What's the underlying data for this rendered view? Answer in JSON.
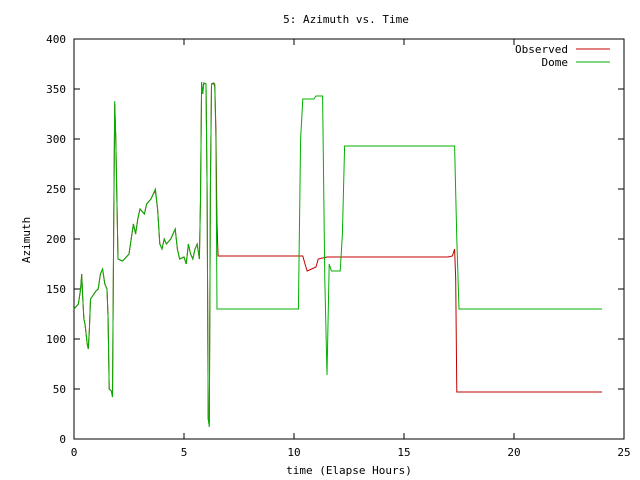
{
  "chart_data": {
    "type": "line",
    "title": "5: Azimuth vs. Time",
    "xlabel": "time (Elapse Hours)",
    "ylabel": "Azimuth",
    "xlim": [
      0,
      25
    ],
    "ylim": [
      0,
      400
    ],
    "xticks": [
      0,
      5,
      10,
      15,
      20,
      25
    ],
    "yticks": [
      0,
      50,
      100,
      150,
      200,
      250,
      300,
      350,
      400
    ],
    "grid": false,
    "legend_position": "top-right",
    "series": [
      {
        "name": "Observed",
        "color": "#c00000",
        "points": [
          [
            0.0,
            130
          ],
          [
            0.2,
            135
          ],
          [
            0.3,
            150
          ],
          [
            0.35,
            165
          ],
          [
            0.4,
            140
          ],
          [
            0.45,
            120
          ],
          [
            0.5,
            115
          ],
          [
            0.6,
            95
          ],
          [
            0.65,
            90
          ],
          [
            0.7,
            110
          ],
          [
            0.75,
            140
          ],
          [
            1.0,
            148
          ],
          [
            1.1,
            150
          ],
          [
            1.2,
            165
          ],
          [
            1.3,
            170
          ],
          [
            1.4,
            155
          ],
          [
            1.5,
            150
          ],
          [
            1.55,
            120
          ],
          [
            1.6,
            50
          ],
          [
            1.7,
            48
          ],
          [
            1.75,
            42
          ],
          [
            1.8,
            200
          ],
          [
            1.85,
            335
          ],
          [
            1.9,
            300
          ],
          [
            2.0,
            180
          ],
          [
            2.2,
            178
          ],
          [
            2.3,
            180
          ],
          [
            2.5,
            185
          ],
          [
            2.6,
            200
          ],
          [
            2.7,
            215
          ],
          [
            2.8,
            205
          ],
          [
            2.9,
            220
          ],
          [
            3.0,
            230
          ],
          [
            3.2,
            225
          ],
          [
            3.3,
            235
          ],
          [
            3.5,
            240
          ],
          [
            3.6,
            245
          ],
          [
            3.7,
            248
          ],
          [
            3.8,
            230
          ],
          [
            3.9,
            195
          ],
          [
            4.0,
            190
          ],
          [
            4.1,
            200
          ],
          [
            4.2,
            195
          ],
          [
            4.4,
            200
          ],
          [
            4.5,
            205
          ],
          [
            4.6,
            210
          ],
          [
            4.7,
            190
          ],
          [
            4.8,
            180
          ],
          [
            5.0,
            182
          ],
          [
            5.1,
            175
          ],
          [
            5.2,
            195
          ],
          [
            5.3,
            185
          ],
          [
            5.4,
            180
          ],
          [
            5.5,
            190
          ],
          [
            5.6,
            195
          ],
          [
            5.7,
            180
          ],
          [
            5.75,
            240
          ],
          [
            5.8,
            355
          ],
          [
            5.85,
            345
          ],
          [
            5.9,
            356
          ],
          [
            6.0,
            355
          ],
          [
            6.05,
            250
          ],
          [
            6.1,
            20
          ],
          [
            6.15,
            15
          ],
          [
            6.2,
            250
          ],
          [
            6.25,
            355
          ],
          [
            6.35,
            356
          ],
          [
            6.4,
            352
          ],
          [
            6.45,
            310
          ],
          [
            6.5,
            215
          ],
          [
            6.55,
            183
          ],
          [
            8.0,
            183
          ],
          [
            10.4,
            183
          ],
          [
            10.5,
            175
          ],
          [
            10.6,
            168
          ],
          [
            10.8,
            170
          ],
          [
            11.0,
            172
          ],
          [
            11.1,
            180
          ],
          [
            11.5,
            182
          ],
          [
            12.0,
            182
          ],
          [
            14.0,
            182
          ],
          [
            17.0,
            182
          ],
          [
            17.2,
            183
          ],
          [
            17.3,
            190
          ],
          [
            17.35,
            160
          ],
          [
            17.4,
            47
          ],
          [
            20.0,
            47
          ],
          [
            24.0,
            47
          ]
        ]
      },
      {
        "name": "Dome",
        "color": "#00b000",
        "points": [
          [
            0.0,
            130
          ],
          [
            0.2,
            135
          ],
          [
            0.3,
            150
          ],
          [
            0.35,
            165
          ],
          [
            0.4,
            140
          ],
          [
            0.45,
            120
          ],
          [
            0.5,
            115
          ],
          [
            0.6,
            95
          ],
          [
            0.65,
            90
          ],
          [
            0.7,
            110
          ],
          [
            0.75,
            140
          ],
          [
            1.0,
            148
          ],
          [
            1.1,
            150
          ],
          [
            1.2,
            165
          ],
          [
            1.3,
            170
          ],
          [
            1.4,
            155
          ],
          [
            1.5,
            150
          ],
          [
            1.55,
            120
          ],
          [
            1.6,
            50
          ],
          [
            1.7,
            48
          ],
          [
            1.75,
            42
          ],
          [
            1.8,
            200
          ],
          [
            1.85,
            338
          ],
          [
            1.9,
            300
          ],
          [
            2.0,
            180
          ],
          [
            2.2,
            178
          ],
          [
            2.3,
            180
          ],
          [
            2.5,
            185
          ],
          [
            2.6,
            200
          ],
          [
            2.7,
            215
          ],
          [
            2.8,
            205
          ],
          [
            2.9,
            220
          ],
          [
            3.0,
            230
          ],
          [
            3.2,
            225
          ],
          [
            3.3,
            235
          ],
          [
            3.5,
            240
          ],
          [
            3.6,
            245
          ],
          [
            3.7,
            250
          ],
          [
            3.8,
            230
          ],
          [
            3.9,
            195
          ],
          [
            4.0,
            190
          ],
          [
            4.1,
            200
          ],
          [
            4.2,
            195
          ],
          [
            4.4,
            200
          ],
          [
            4.5,
            205
          ],
          [
            4.6,
            210
          ],
          [
            4.7,
            190
          ],
          [
            4.8,
            180
          ],
          [
            5.0,
            182
          ],
          [
            5.1,
            175
          ],
          [
            5.2,
            195
          ],
          [
            5.3,
            185
          ],
          [
            5.4,
            180
          ],
          [
            5.5,
            190
          ],
          [
            5.6,
            195
          ],
          [
            5.7,
            180
          ],
          [
            5.75,
            240
          ],
          [
            5.8,
            357
          ],
          [
            5.85,
            345
          ],
          [
            5.9,
            356
          ],
          [
            6.0,
            355
          ],
          [
            6.05,
            250
          ],
          [
            6.1,
            20
          ],
          [
            6.15,
            12
          ],
          [
            6.2,
            250
          ],
          [
            6.25,
            355
          ],
          [
            6.4,
            355
          ],
          [
            6.45,
            300
          ],
          [
            6.5,
            130
          ],
          [
            10.0,
            130
          ],
          [
            10.2,
            130
          ],
          [
            10.3,
            300
          ],
          [
            10.4,
            340
          ],
          [
            10.9,
            340
          ],
          [
            11.0,
            343
          ],
          [
            11.3,
            343
          ],
          [
            11.4,
            160
          ],
          [
            11.5,
            64
          ],
          [
            11.6,
            175
          ],
          [
            11.7,
            168
          ],
          [
            12.1,
            168
          ],
          [
            12.2,
            205
          ],
          [
            12.3,
            293
          ],
          [
            14.0,
            293
          ],
          [
            17.3,
            293
          ],
          [
            17.4,
            200
          ],
          [
            17.5,
            130
          ],
          [
            20.0,
            130
          ],
          [
            24.0,
            130
          ]
        ]
      }
    ]
  }
}
